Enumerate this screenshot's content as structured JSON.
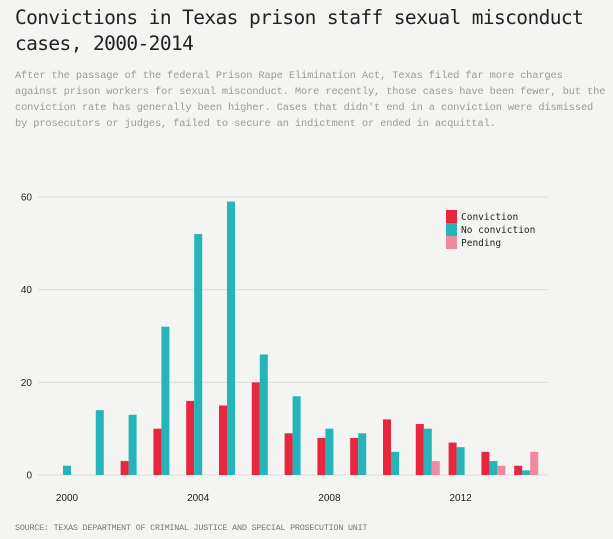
{
  "header": {
    "title": "Convictions in Texas prison staff sexual misconduct cases, 2000-2014",
    "subtitle": "After the passage of the federal Prison Rape Elimination Act, Texas filed far more charges against prison workers for sexual misconduct. More recently, those cases have been fewer, but the conviction rate has generally been higher. Cases that didn't end in a conviction were dismissed by prosecutors or judges, failed to secure an indictment or ended in acquittal."
  },
  "footer": {
    "source": "SOURCE: TEXAS DEPARTMENT OF CRIMINAL JUSTICE AND SPECIAL PROSECUTION UNIT"
  },
  "chart_data": {
    "type": "bar",
    "title": "Convictions in Texas prison staff sexual misconduct cases, 2000-2014",
    "xlabel": "",
    "ylabel": "",
    "categories": [
      2000,
      2001,
      2002,
      2003,
      2004,
      2005,
      2006,
      2007,
      2008,
      2009,
      2010,
      2011,
      2012,
      2013,
      2014
    ],
    "x_ticks": [
      "2000",
      "2004",
      "2008",
      "2012"
    ],
    "x_tick_values": [
      2000,
      2004,
      2008,
      2012
    ],
    "y_ticks": [
      "0",
      "20",
      "40",
      "60"
    ],
    "y_tick_values": [
      0,
      20,
      40,
      60
    ],
    "ylim": [
      0,
      60
    ],
    "grid": true,
    "legend_position": "top-right",
    "series": [
      {
        "name": "Conviction",
        "color": "#e8273f",
        "values": [
          0,
          0,
          3,
          10,
          16,
          15,
          20,
          9,
          8,
          8,
          12,
          11,
          7,
          5,
          2
        ]
      },
      {
        "name": "No conviction",
        "color": "#25b5b8",
        "values": [
          2,
          14,
          13,
          32,
          52,
          59,
          26,
          17,
          10,
          9,
          5,
          10,
          6,
          3,
          1
        ]
      },
      {
        "name": "Pending",
        "color": "#f08aa0",
        "values": [
          0,
          0,
          0,
          0,
          0,
          0,
          0,
          0,
          0,
          0,
          0,
          3,
          0,
          2,
          5
        ]
      }
    ]
  }
}
